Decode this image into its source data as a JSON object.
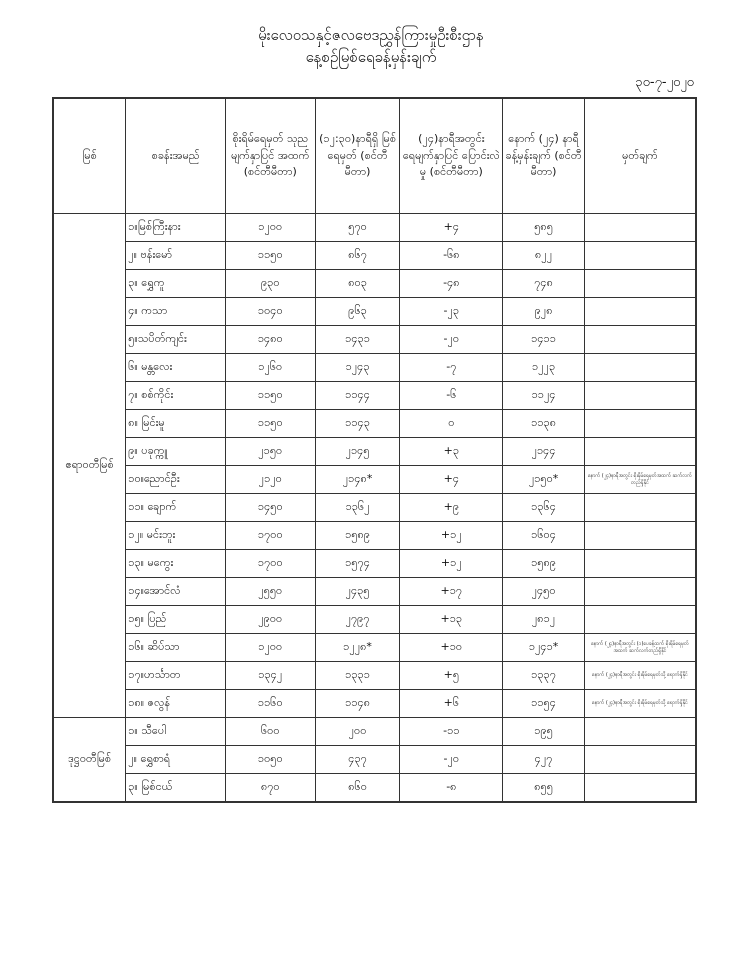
{
  "title": "မိုးလေဝသနှင့်ဇလဗေဒညွှန်ကြားမှုဦးစီးဌာန",
  "subtitle": "နေ့စဉ်မြစ်ရေခန့်မှန်းချက်",
  "date": "၃၀-၇-၂၀၂၀",
  "headers": [
    "မြစ်",
    "စခန်းအမည်",
    "စိုးရိမ်ရေမှတ် သုညမျက်နှာပြင် အထက် (စင်တီမီတာ)",
    "(၁၂:၃၀)နာရီရှိ မြစ်ရေမှတ် (စင်တီမီတာ)",
    "(၂၄)နာရီအတွင်း ရေမျက်နှာပြင် ပြောင်းလဲမှု (စင်တီမီတာ)",
    "နောက် (၂၄) နာရီ ခန့်မှန်းချက် (စင်တီမီတာ)",
    "မှတ်ချက်"
  ],
  "groups": [
    {
      "river": "ဧရာဝတီမြစ်",
      "rows": [
        [
          "၁။မြစ်ကြီးနား",
          "၁၂၀၀",
          "၅၇၀",
          "+၄",
          "၅၈၅",
          ""
        ],
        [
          "၂။ ဗန်းမော်",
          "၁၁၅၀",
          "၈၆၇",
          "-၆၈",
          "၈၂၂",
          ""
        ],
        [
          "၃။ ရွှေကူ",
          "၉၃၀",
          "၈၀၃",
          "-၄၈",
          "၇၄၈",
          ""
        ],
        [
          "၄။ ကသာ",
          "၁၀၄၀",
          "၉၆၃",
          "-၂၃",
          "၉၂၈",
          ""
        ],
        [
          "၅။သပိတ်ကျင်း",
          "၁၄၈၀",
          "၁၄၃၁",
          "-၂၀",
          "၁၄၁၁",
          ""
        ],
        [
          "၆။ မန္တလေး",
          "၁၂၆၀",
          "၁၂၄၃",
          "-၇",
          "၁၂၂၃",
          ""
        ],
        [
          "၇။ စစ်ကိုင်း",
          "၁၁၅၀",
          "၁၁၄၄",
          "-၆",
          "၁၁၂၄",
          ""
        ],
        [
          "၈။ မြင်းမူ",
          "၁၁၅၀",
          "၁၁၄၃",
          "၀",
          "၁၁၃၈",
          ""
        ],
        [
          "၉။ ပခုက္ကူ",
          "၂၁၅၀",
          "၂၁၄၅",
          "+၃",
          "၂၁၄၄",
          ""
        ],
        [
          "၁၀။ညောင်ဦး",
          "၂၁၂၀",
          "၂၁၄၈*",
          "+၄",
          "၂၁၅၀*",
          "နောက် (၂၄)နာရီအတွင်း စိုးရိမ်ရေမှတ်အထက် ဆက်လက်တည်ရှိနိုင်"
        ],
        [
          "၁၁။ ချောက်",
          "၁၄၅၀",
          "၁၃၆၂",
          "+၉",
          "၁၃၆၄",
          ""
        ],
        [
          "၁၂။ မင်းဘူး",
          "၁၇၀၀",
          "၁၅၈၉",
          "+၁၂",
          "၁၆၀၄",
          ""
        ],
        [
          "၁၃။ မကွေး",
          "၁၇၀၀",
          "၁၅၇၄",
          "+၁၂",
          "၁၅၈၉",
          ""
        ],
        [
          "၁၄။အောင်လံ",
          "၂၅၅၀",
          "၂၄၃၅",
          "+၁၇",
          "၂၄၅၀",
          ""
        ],
        [
          "၁၅။ ပြည်",
          "၂၉၀၀",
          "၂၇၉၇",
          "+၁၃",
          "၂၈၁၂",
          ""
        ],
        [
          "၁၆။ ဆိပ်သာ",
          "၁၂၀၀",
          "၁၂၂၈*",
          "+၁၀",
          "၁၂၄၁*",
          "နောက် (၂၄)နာရီအတွင်း (၁)ပေခန့်ထက် စိုးရိမ်ရေမှတ်အထက် ဆက်လက်တည်ရှိနိုင်"
        ],
        [
          "၁၇။ဟင်္သာတ",
          "၁၃၄၂",
          "၁၃၃၁",
          "+၅",
          "၁၃၃၇",
          "နောက် (၂၄)နာရီအတွင်း စိုးရိမ်ရေမှတ်သို့ ရောက်ရှိနိုင်"
        ],
        [
          "၁၈။ ဇလွန်",
          "၁၁၆၀",
          "၁၁၄၈",
          "+၆",
          "၁၁၅၄",
          "နောက် (၂၄)နာရီအတွင်း စိုးရိမ်ရေမှတ်သို့ ရောက်ရှိနိုင်"
        ]
      ]
    },
    {
      "river": "ဒုဋ္ဌဝတီမြစ်",
      "rows": [
        [
          "၁။ သီပေါ",
          "၆၀၀",
          "၂၀၀",
          "-၁၁",
          "၁၉၅",
          ""
        ],
        [
          "၂။ ရွှေစာရံ",
          "၁၀၅၀",
          "၄၃၇",
          "-၂၀",
          "၄၂၇",
          ""
        ],
        [
          "၃။ မြစ်ငယ်",
          "၈၇၀",
          "၈၆၀",
          "-၈",
          "၈၅၅",
          ""
        ]
      ]
    }
  ]
}
